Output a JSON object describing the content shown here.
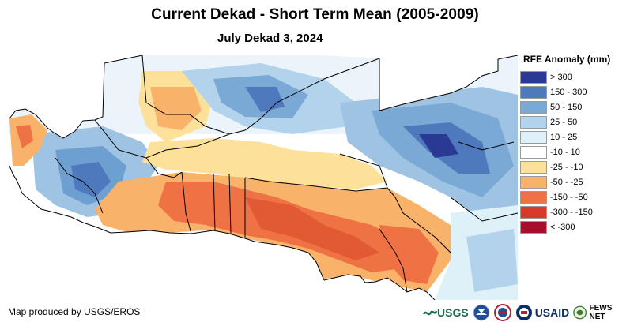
{
  "title": "Current Dekad - Short Term Mean (2005-2009)",
  "subtitle": "July Dekad 3, 2024",
  "legend": {
    "title": "RFE Anomaly (mm)",
    "items": [
      {
        "label": "> 300",
        "color": "#2a3a94"
      },
      {
        "label": "150 - 300",
        "color": "#4f79bd"
      },
      {
        "label": "50 - 150",
        "color": "#7aa9d6"
      },
      {
        "label": "25 - 50",
        "color": "#b2d3eb"
      },
      {
        "label": "10 - 25",
        "color": "#def0f8"
      },
      {
        "label": "-10 - 10",
        "color": "#ffffff"
      },
      {
        "label": "-25 - -10",
        "color": "#fde19a"
      },
      {
        "label": "-50 - -25",
        "color": "#f8b26a"
      },
      {
        "label": "-150 - -50",
        "color": "#ef7244"
      },
      {
        "label": "-300 - -150",
        "color": "#d53a2a"
      },
      {
        "label": "< -300",
        "color": "#a50f2a"
      }
    ]
  },
  "credit": "Map produced by USGS/EROS",
  "logos": {
    "usgs": "USGS",
    "usaid": "USAID",
    "fewsnet": "FEWS NET"
  },
  "map": {
    "region": "West Africa",
    "land_color": "#ffffff",
    "ocean_color": "#ffffff",
    "border_color": "#000000"
  }
}
